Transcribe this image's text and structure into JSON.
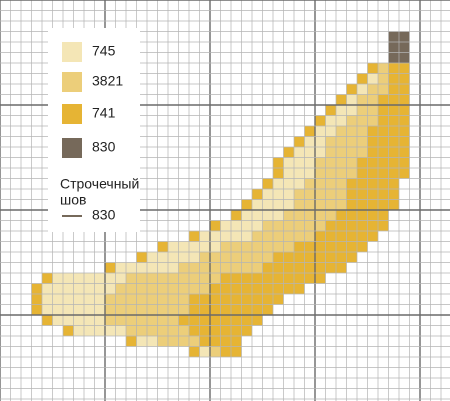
{
  "legend": {
    "items": [
      {
        "label": "745",
        "color": "#f4e6b6"
      },
      {
        "label": "3821",
        "color": "#ecce7a"
      },
      {
        "label": "741",
        "color": "#e6b434"
      },
      {
        "label": "830",
        "color": "#76695a"
      }
    ],
    "backstitch": {
      "title_lines": [
        "Строчечный",
        "шов"
      ],
      "label": "830"
    }
  }
}
